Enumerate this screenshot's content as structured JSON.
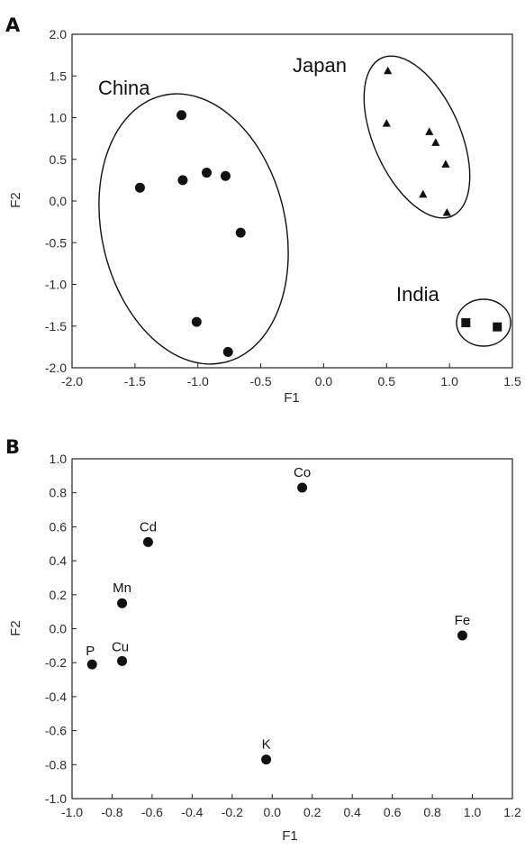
{
  "chart_data": [
    {
      "panel": "A",
      "type": "scatter",
      "xlabel": "F1",
      "ylabel": "F2",
      "xlim": [
        -2.0,
        1.5
      ],
      "ylim": [
        -2.0,
        2.0
      ],
      "x_ticks": [
        "-2.0",
        "-1.5",
        "-1.0",
        "-0.5",
        "0.0",
        "0.5",
        "1.0",
        "1.5"
      ],
      "y_ticks": [
        "2.0",
        "1.5",
        "1.0",
        "0.5",
        "0,0",
        "-0.5",
        "-1.0",
        "-1.5",
        "-2.0"
      ],
      "grid": false,
      "series": [
        {
          "name": "China",
          "marker": "circle",
          "points": [
            [
              -1.13,
              1.03
            ],
            [
              -1.46,
              0.16
            ],
            [
              -1.12,
              0.25
            ],
            [
              -0.93,
              0.34
            ],
            [
              -0.78,
              0.3
            ],
            [
              -0.66,
              -0.38
            ],
            [
              -1.01,
              -1.45
            ],
            [
              -0.76,
              -1.81
            ]
          ]
        },
        {
          "name": "Japan",
          "marker": "triangle",
          "points": [
            [
              0.51,
              1.56
            ],
            [
              0.5,
              0.93
            ],
            [
              0.84,
              0.83
            ],
            [
              0.89,
              0.7
            ],
            [
              0.97,
              0.44
            ],
            [
              0.79,
              0.08
            ],
            [
              0.98,
              -0.14
            ]
          ]
        },
        {
          "name": "India",
          "marker": "square",
          "points": [
            [
              1.13,
              -1.46
            ],
            [
              1.38,
              -1.51
            ]
          ]
        }
      ]
    },
    {
      "panel": "B",
      "type": "scatter",
      "xlabel": "F1",
      "ylabel": "F2",
      "xlim": [
        -1.0,
        1.2
      ],
      "ylim": [
        -1.0,
        1.0
      ],
      "x_ticks": [
        "-1.0",
        "-0.8",
        "-0.6",
        "-0.4",
        "-0.2",
        "0.0",
        "0.2",
        "0.4",
        "0.6",
        "0.8",
        "1.0",
        "1.2"
      ],
      "y_ticks": [
        "1.0",
        "0.8",
        "0.6",
        "0.4",
        "0.2",
        "0.0",
        "-0.2",
        "-0.4",
        "-0.6",
        "-0.8",
        "-1.0"
      ],
      "grid": false,
      "points": [
        {
          "label": "Co",
          "x": 0.15,
          "y": 0.83
        },
        {
          "label": "Cd",
          "x": -0.62,
          "y": 0.51
        },
        {
          "label": "Mn",
          "x": -0.75,
          "y": 0.15
        },
        {
          "label": "Fe",
          "x": 0.95,
          "y": -0.04
        },
        {
          "label": "P",
          "x": -0.9,
          "y": -0.21
        },
        {
          "label": "Cu",
          "x": -0.75,
          "y": -0.19
        },
        {
          "label": "K",
          "x": -0.03,
          "y": -0.77
        }
      ]
    }
  ]
}
